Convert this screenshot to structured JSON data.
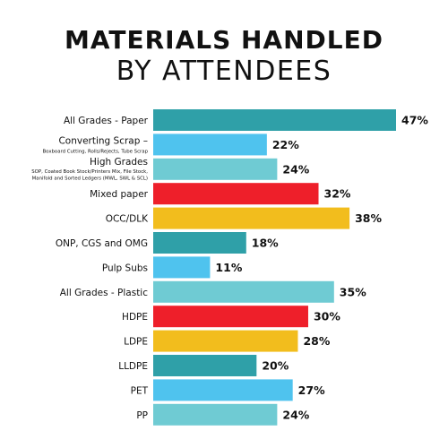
{
  "chart_data": {
    "type": "bar",
    "orientation": "horizontal",
    "title_line1": "MATERIALS HANDLED",
    "title_line2": "BY ATTENDEES",
    "xlim": [
      0,
      47
    ],
    "grid": false,
    "value_suffix": "%",
    "categories": [
      {
        "label": "All Grades - Paper",
        "sub": [],
        "value": 47,
        "color": "#2fa0a8"
      },
      {
        "label": "Converting Scrap –",
        "sub": [
          "Boxboard Cutting, Rolls/Rejects, Tube Scrap"
        ],
        "value": 22,
        "color": "#4fc3ee"
      },
      {
        "label": "High Grades",
        "sub": [
          "SOP, Coated Book Stock/Printers Mix, File Stock,",
          "Manifold and Sorted Ledgers (MWL, SWL & SCL)"
        ],
        "value": 24,
        "color": "#6fcbd3"
      },
      {
        "label": "Mixed paper",
        "sub": [],
        "value": 32,
        "color": "#ee1f2a"
      },
      {
        "label": "OCC/DLK",
        "sub": [],
        "value": 38,
        "color": "#f2bd1d"
      },
      {
        "label": "ONP, CGS and OMG",
        "sub": [],
        "value": 18,
        "color": "#2fa0a8"
      },
      {
        "label": "Pulp Subs",
        "sub": [],
        "value": 11,
        "color": "#4fc3ee"
      },
      {
        "label": "All Grades - Plastic",
        "sub": [],
        "value": 35,
        "color": "#6fcbd3"
      },
      {
        "label": "HDPE",
        "sub": [],
        "value": 30,
        "color": "#ee1f2a"
      },
      {
        "label": "LDPE",
        "sub": [],
        "value": 28,
        "color": "#f2bd1d"
      },
      {
        "label": "LLDPE",
        "sub": [],
        "value": 20,
        "color": "#2fa0a8"
      },
      {
        "label": "PET",
        "sub": [],
        "value": 27,
        "color": "#4fc3ee"
      },
      {
        "label": "PP",
        "sub": [],
        "value": 24,
        "color": "#6fcbd3"
      }
    ]
  }
}
